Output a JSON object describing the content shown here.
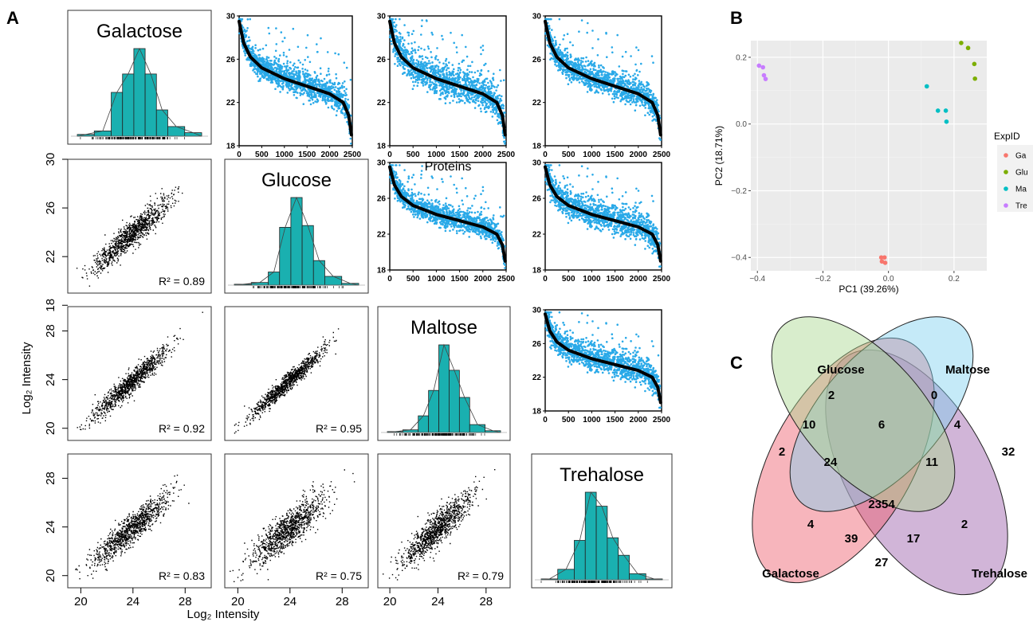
{
  "panel_labels": {
    "a": "A",
    "b": "B",
    "c": "C"
  },
  "colors": {
    "teal": "#1ab0b0",
    "scatter_blue": "#29a9e8",
    "trend": "#000000",
    "pca_background": "#ebebeb",
    "galactose": "#f8766d",
    "glucose": "#7cae00",
    "maltose": "#00bfc4",
    "trehalose": "#c77cff",
    "venn_galactose": "#ed5a6a",
    "venn_glucose": "#a8d88e",
    "venn_maltose": "#7fd0f0",
    "venn_trehalose": "#9a5aa8"
  },
  "panel_a": {
    "sugars": [
      "Galactose",
      "Glucose",
      "Maltose",
      "Trehalose"
    ],
    "left_axis_label": "Log₂ Intensity",
    "bottom_axis_label": "Log₂ Intensity",
    "proteins_axis_label": "Proteins",
    "row_ticks": [
      [
        "30",
        "26",
        "22",
        "18"
      ],
      [
        "28",
        "24",
        "20"
      ],
      [
        "28",
        "24",
        "20"
      ]
    ],
    "bottom_ticks": [
      "20",
      "24",
      "28"
    ],
    "rank_y_ticks": [
      "30",
      "26",
      "22",
      "18"
    ],
    "rank_x_ticks": [
      "0",
      "500",
      "1000",
      "1500",
      "2000",
      "2500"
    ],
    "r_squared": [
      {
        "row": 1,
        "col": 0,
        "label": "R² = 0.89"
      },
      {
        "row": 2,
        "col": 0,
        "label": "R² = 0.92"
      },
      {
        "row": 2,
        "col": 1,
        "label": "R² = 0.95"
      },
      {
        "row": 3,
        "col": 0,
        "label": "R² = 0.83"
      },
      {
        "row": 3,
        "col": 1,
        "label": "R² = 0.75"
      },
      {
        "row": 3,
        "col": 2,
        "label": "R² = 0.79"
      }
    ]
  },
  "panel_b": {
    "xlabel": "PC1 (39.26%)",
    "ylabel": "PC2 (18.71%)",
    "x_ticks": [
      "−0.4",
      "−0.2",
      "0.0",
      "0.2"
    ],
    "y_ticks": [
      "0.2",
      "0.0",
      "−0.2",
      "−0.4"
    ],
    "legend_title": "ExpID",
    "legend_items": [
      "Ga",
      "Glu",
      "Ma",
      "Tre"
    ]
  },
  "panel_c": {
    "set_labels": [
      "Glucose",
      "Maltose",
      "Galactose",
      "Trehalose"
    ],
    "regions": [
      "2",
      "0",
      "2",
      "32",
      "10",
      "6",
      "4",
      "24",
      "11",
      "2354",
      "4",
      "2",
      "39",
      "17",
      "27"
    ]
  },
  "chart_data": [
    {
      "type": "scatter",
      "title": "",
      "panel": "A",
      "description_of_layout": "4x4 matrix: diagonal histograms, lower triangle pairwise scatter of log2 intensities, upper triangle ranked protein intensities",
      "series_names": [
        "Galactose",
        "Glucose",
        "Maltose",
        "Trehalose"
      ],
      "xlabel": "Log₂ Intensity",
      "ylabel": "Log₂ Intensity",
      "r_squared": [
        {
          "x": "Galactose",
          "y": "Glucose",
          "r2": 0.89
        },
        {
          "x": "Galactose",
          "y": "Maltose",
          "r2": 0.92
        },
        {
          "x": "Glucose",
          "y": "Maltose",
          "r2": 0.95
        },
        {
          "x": "Galactose",
          "y": "Trehalose",
          "r2": 0.83
        },
        {
          "x": "Glucose",
          "y": "Trehalose",
          "r2": 0.75
        },
        {
          "x": "Maltose",
          "y": "Trehalose",
          "r2": 0.79
        }
      ],
      "scatter_xlim": [
        19,
        30
      ],
      "histograms": {
        "bin_edges": [
          19,
          20.5,
          22,
          23,
          24,
          25,
          26,
          27,
          28.5,
          30
        ],
        "relative_counts": {
          "Galactose": [
            0.02,
            0.06,
            0.5,
            0.71,
            1.0,
            0.71,
            0.3,
            0.11,
            0.04
          ],
          "Glucose": [
            0.01,
            0.03,
            0.15,
            0.66,
            1.0,
            0.68,
            0.28,
            0.1,
            0.02
          ],
          "Maltose": [
            0.01,
            0.03,
            0.19,
            0.48,
            1.0,
            0.71,
            0.4,
            0.09,
            0.02
          ],
          "Trehalose": [
            0.01,
            0.12,
            0.45,
            1.0,
            0.84,
            0.48,
            0.28,
            0.07,
            0.01
          ]
        }
      },
      "rank_plots": {
        "xlabel": "Proteins",
        "x_range": [
          0,
          2500
        ],
        "y_range": [
          18,
          30
        ],
        "trend": [
          [
            0,
            29.5
          ],
          [
            100,
            27.5
          ],
          [
            250,
            26.2
          ],
          [
            500,
            25.2
          ],
          [
            1000,
            24.2
          ],
          [
            1500,
            23.5
          ],
          [
            2000,
            22.8
          ],
          [
            2300,
            22.0
          ],
          [
            2420,
            20.8
          ],
          [
            2480,
            19.0
          ]
        ]
      }
    },
    {
      "type": "scatter",
      "title": "",
      "panel": "B",
      "xlabel": "PC1 (39.26%)",
      "ylabel": "PC2 (18.71%)",
      "xlim": [
        -0.42,
        0.3
      ],
      "ylim": [
        -0.44,
        0.25
      ],
      "legend_title": "ExpID",
      "legend_position": "right",
      "series": [
        {
          "name": "Ga",
          "points": [
            [
              -0.022,
              -0.4
            ],
            [
              -0.012,
              -0.4
            ],
            [
              -0.02,
              -0.412
            ],
            [
              -0.01,
              -0.416
            ]
          ]
        },
        {
          "name": "Glu",
          "points": [
            [
              0.222,
              0.243
            ],
            [
              0.243,
              0.228
            ],
            [
              0.262,
              0.18
            ],
            [
              0.264,
              0.136
            ]
          ]
        },
        {
          "name": "Ma",
          "points": [
            [
              0.117,
              0.113
            ],
            [
              0.151,
              0.04
            ],
            [
              0.175,
              0.04
            ],
            [
              0.177,
              0.007
            ]
          ]
        },
        {
          "name": "Tre",
          "points": [
            [
              -0.395,
              0.175
            ],
            [
              -0.383,
              0.17
            ],
            [
              -0.38,
              0.146
            ],
            [
              -0.375,
              0.135
            ]
          ]
        }
      ]
    },
    {
      "type": "venn",
      "title": "",
      "panel": "C",
      "sets": [
        "Glucose",
        "Maltose",
        "Galactose",
        "Trehalose"
      ],
      "regions": [
        {
          "sets": [
            "Glucose"
          ],
          "value": 2
        },
        {
          "sets": [
            "Maltose"
          ],
          "value": 0
        },
        {
          "sets": [
            "Galactose"
          ],
          "value": 2
        },
        {
          "sets": [
            "Trehalose"
          ],
          "value": 32
        },
        {
          "sets": [
            "Galactose",
            "Glucose"
          ],
          "value": 10
        },
        {
          "sets": [
            "Glucose",
            "Maltose"
          ],
          "value": 6
        },
        {
          "sets": [
            "Maltose",
            "Trehalose"
          ],
          "value": 4
        },
        {
          "sets": [
            "Galactose",
            "Glucose",
            "Maltose"
          ],
          "value": 24
        },
        {
          "sets": [
            "Glucose",
            "Maltose",
            "Trehalose"
          ],
          "value": 11
        },
        {
          "sets": [
            "Galactose",
            "Glucose",
            "Maltose",
            "Trehalose"
          ],
          "value": 2354
        },
        {
          "sets": [
            "Galactose",
            "Maltose"
          ],
          "value": 4
        },
        {
          "sets": [
            "Glucose",
            "Trehalose"
          ],
          "value": 2
        },
        {
          "sets": [
            "Galactose",
            "Maltose",
            "Trehalose"
          ],
          "value": 39
        },
        {
          "sets": [
            "Galactose",
            "Glucose",
            "Trehalose"
          ],
          "value": 17
        },
        {
          "sets": [
            "Galactose",
            "Trehalose"
          ],
          "value": 27
        }
      ]
    }
  ]
}
